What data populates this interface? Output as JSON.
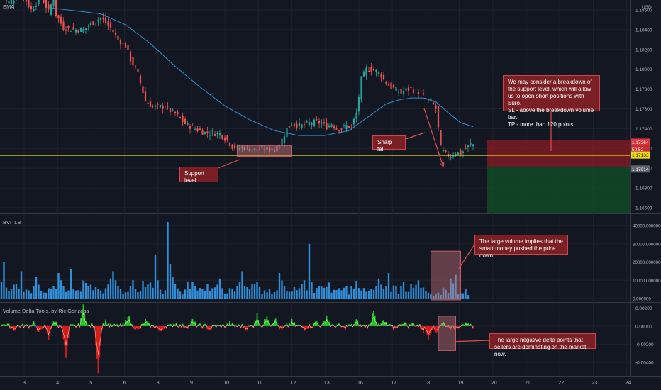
{
  "colors": {
    "background": "#131722",
    "grid": "#1e222d",
    "up": "#26a69a",
    "down": "#ef5350",
    "ema": "#2f8fd8",
    "support": "#f5d90a",
    "volume": "#2f8fd8",
    "delta_up": "#22cc22",
    "delta_down": "#e01b1b",
    "delta_line": "#f0f0d0",
    "annotation": "#7a1f24",
    "stop_zone": "#8a1c24",
    "target_zone": "#0f4d27"
  },
  "panels": {
    "main": {
      "label": "EMA",
      "currency": "USD"
    },
    "volume": {
      "label": "BVI_LB"
    },
    "delta": {
      "label": "Volume Delta Tools, by Ric Gonzaga"
    }
  },
  "x_axis": {
    "labels": [
      "3",
      "4",
      "5",
      "6",
      "8",
      "9",
      "10",
      "11",
      "12",
      "13",
      "16",
      "17",
      "18",
      "19",
      "20",
      "21",
      "22",
      "23",
      "24"
    ]
  },
  "chart_data": [
    {
      "type": "line",
      "name": "price",
      "y_ticks": [
        "1.18600",
        "1.18400",
        "1.18200",
        "1.18000",
        "1.17800",
        "1.17600",
        "1.17400",
        "1.17200",
        "1.17000",
        "1.16800",
        "1.16600"
      ],
      "ylim": [
        1.1655,
        1.187
      ],
      "price_path": {
        "t": [
          0,
          3,
          8,
          10,
          12,
          16,
          19,
          21,
          22,
          25,
          29,
          33,
          36,
          40,
          44,
          47,
          50,
          52,
          55,
          58,
          61,
          64,
          66,
          68,
          70,
          72,
          74,
          78,
          82,
          88,
          91,
          93,
          95,
          97,
          99,
          101,
          103,
          105,
          107,
          109,
          111,
          113,
          115,
          117,
          119,
          121,
          123,
          125,
          127,
          129,
          131,
          133,
          135,
          137,
          139,
          141,
          143,
          145,
          147,
          149,
          151,
          153,
          155,
          157,
          159,
          161,
          163,
          165,
          167,
          169,
          171,
          173,
          175,
          177,
          179,
          181,
          183,
          185,
          187,
          189
        ],
        "close": [
          1.1872,
          1.1868,
          1.1875,
          1.1869,
          1.186,
          1.1874,
          1.1858,
          1.1872,
          1.1855,
          1.1842,
          1.184,
          1.184,
          1.1846,
          1.1852,
          1.1842,
          1.183,
          1.1824,
          1.181,
          1.1795,
          1.1768,
          1.1762,
          1.1762,
          1.1762,
          1.1758,
          1.1755,
          1.175,
          1.1745,
          1.174,
          1.1736,
          1.1735,
          1.1728,
          1.1722,
          1.172,
          1.1721,
          1.172,
          1.1719,
          1.1718,
          1.172,
          1.1719,
          1.1719,
          1.172,
          1.1729,
          1.174,
          1.1745,
          1.1744,
          1.1743,
          1.1745,
          1.1746,
          1.1747,
          1.1745,
          1.1742,
          1.1745,
          1.174,
          1.174,
          1.1743,
          1.1742,
          1.1755,
          1.179,
          1.18,
          1.18,
          1.1798,
          1.1794,
          1.1786,
          1.1782,
          1.1779,
          1.1776,
          1.1779,
          1.178,
          1.1778,
          1.1776,
          1.177,
          1.1768,
          1.176,
          1.172,
          1.1714,
          1.1712,
          1.1716,
          1.1714,
          1.172,
          1.1724
        ]
      },
      "ema_path": {
        "t": [
          20,
          30,
          40,
          50,
          60,
          70,
          80,
          90,
          100,
          110,
          120,
          130,
          140,
          150,
          155,
          160,
          165,
          170,
          175,
          180,
          185,
          190
        ],
        "value": [
          1.1862,
          1.1859,
          1.1856,
          1.1845,
          1.1826,
          1.1803,
          1.1782,
          1.1763,
          1.1749,
          1.1738,
          1.1733,
          1.1733,
          1.1738,
          1.1756,
          1.1765,
          1.1769,
          1.1771,
          1.1771,
          1.1767,
          1.1756,
          1.1746,
          1.1742
        ]
      },
      "support_level": 1.1713,
      "price_labels": [
        "1.17264",
        "59:52",
        "1.17133",
        "1.17014"
      ],
      "current_price": 1.17264,
      "support_price": 1.17133,
      "stop_price": 1.17014
    },
    {
      "type": "bar",
      "name": "volume",
      "y_ticks": [
        "40000.000000",
        "30000.000000",
        "20000.000000",
        "10000.000000",
        "0.000000"
      ],
      "ylim": [
        0,
        42000
      ],
      "values": [
        9000,
        20000,
        6000,
        4200,
        5200,
        7600,
        8200,
        5200,
        15000,
        3600,
        5000,
        4500,
        3000,
        6700,
        12000,
        7600,
        4000,
        3300,
        3200,
        5700,
        5300,
        6900,
        5200,
        14000,
        10000,
        7000,
        3600,
        4400,
        16000,
        5200,
        4400,
        4600,
        3700,
        9900,
        8600,
        6800,
        7600,
        4600,
        6200,
        5300,
        4500,
        2900,
        5700,
        7700,
        11000,
        15000,
        10000,
        6800,
        5100,
        2600,
        3400,
        3600,
        7000,
        10000,
        5300,
        3500,
        4000,
        9700,
        6200,
        7700,
        8800,
        5900,
        24000,
        10000,
        4800,
        2600,
        4500,
        42000,
        19000,
        12000,
        8000,
        5600,
        3700,
        2200,
        4900,
        9400,
        5300,
        9200,
        6600,
        4400,
        5800,
        5100,
        3900,
        7800,
        4300,
        5700,
        6100,
        7600,
        11000,
        5700,
        2500,
        2900,
        5700,
        5500,
        3800,
        6600,
        8900,
        15000,
        6800,
        6200,
        5200,
        8200,
        7900,
        9300,
        6300,
        2700,
        4500,
        3400,
        5000,
        2300,
        3500,
        4500,
        14000,
        9900,
        6600,
        4300,
        3700,
        3800,
        6200,
        4600,
        5700,
        7800,
        10000,
        4500,
        30000,
        9000,
        3100,
        5800,
        7000,
        6500,
        5900,
        6300,
        8800,
        3200,
        4800,
        4700,
        5700,
        4500,
        5900,
        6700,
        2200,
        6800,
        5500,
        9700,
        5800,
        4400,
        5800,
        3700,
        4300,
        5500,
        4800,
        6700,
        11000,
        7600,
        5500,
        6800,
        14000,
        3600,
        7200,
        6900,
        2600,
        6700,
        9000,
        3700,
        3600,
        8100,
        5900,
        7500,
        10000,
        5800,
        6100,
        4200,
        3200,
        2300,
        1500,
        2500,
        3300,
        2000,
        6000,
        4800,
        3100,
        11000,
        8300,
        13000,
        2600,
        2900,
        2900,
        5500,
        1900
      ]
    },
    {
      "type": "bar",
      "name": "volume_delta",
      "y_ticks": [
        "0.00200",
        "0.00000",
        "-0.00200",
        "-0.00400"
      ],
      "ylim": [
        -0.0051,
        0.0025
      ],
      "spikes": {
        "t": [
          1,
          5,
          13,
          15,
          19,
          21,
          26,
          33,
          39,
          42,
          51,
          55,
          58,
          64,
          70,
          77,
          84,
          92,
          99,
          103,
          107,
          110,
          113,
          117,
          122,
          127,
          131,
          138,
          143,
          150,
          154,
          158,
          162,
          166,
          170,
          172,
          175,
          178,
          182,
          186
        ],
        "value": [
          0.0004,
          -0.0004,
          0.0005,
          -0.0009,
          -0.0015,
          0.0007,
          -0.0035,
          0.0023,
          -0.005,
          0.0005,
          0.0013,
          -0.0006,
          0.0006,
          -0.0008,
          0.0004,
          0.0006,
          -0.0004,
          0.0003,
          -0.0003,
          0.0012,
          0.0013,
          0.0009,
          -0.0005,
          0.0005,
          -0.0003,
          0.0006,
          0.0012,
          -0.0003,
          0.0006,
          0.0019,
          0.0006,
          -0.0003,
          0.0005,
          0.0003,
          -0.0005,
          -0.0012,
          -0.0007,
          0.0004,
          -0.0003,
          0.0004
        ]
      }
    }
  ],
  "annotations": {
    "support_label": "Support level",
    "sharp_fall_label": "Sharp fall",
    "breakdown_note": "We may consider a breakdown of the support level, which will allow us to open short positions with Euro.\nSL - above the breakdown volume bar.\nTP - more than 120 points.",
    "volume_note": "The large volume implies that the smart money pushed the price down.",
    "delta_note": "The large negative delta points that sellers are dominating on the market now."
  }
}
